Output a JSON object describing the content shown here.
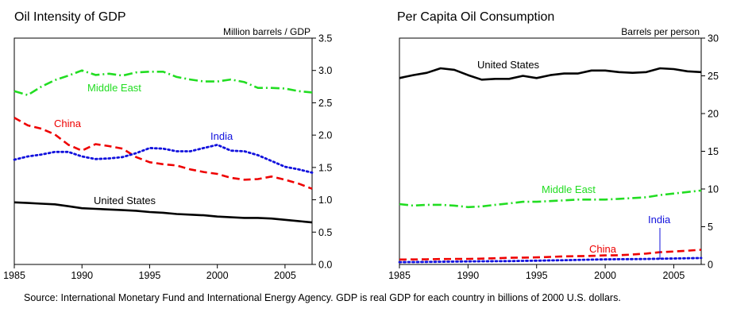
{
  "chart_data": [
    {
      "type": "line",
      "title": "Oil Intensity of GDP",
      "ylabel": "Million barrels / GDP",
      "ylim": [
        0,
        3.5
      ],
      "y_ticks": [
        "0.0",
        "0.5",
        "1.0",
        "1.5",
        "2.0",
        "2.5",
        "3.0",
        "3.5"
      ],
      "xlim": [
        1985,
        2007
      ],
      "x_ticks": [
        "1985",
        "1990",
        "1995",
        "2000",
        "2005"
      ],
      "x": [
        1985,
        1986,
        1987,
        1988,
        1989,
        1990,
        1991,
        1992,
        1993,
        1994,
        1995,
        1996,
        1997,
        1998,
        1999,
        2000,
        2001,
        2002,
        2003,
        2004,
        2005,
        2006,
        2007
      ],
      "series": [
        {
          "name": "Middle East",
          "color": "#22dd22",
          "style": "dashdot",
          "values": [
            2.68,
            2.62,
            2.75,
            2.85,
            2.92,
            3.0,
            2.93,
            2.95,
            2.92,
            2.97,
            2.98,
            2.98,
            2.9,
            2.86,
            2.83,
            2.83,
            2.86,
            2.82,
            2.73,
            2.73,
            2.72,
            2.68,
            2.66
          ]
        },
        {
          "name": "China",
          "color": "#ee0000",
          "style": "dashed",
          "values": [
            2.27,
            2.15,
            2.1,
            2.01,
            1.85,
            1.76,
            1.86,
            1.83,
            1.79,
            1.66,
            1.58,
            1.55,
            1.53,
            1.47,
            1.43,
            1.4,
            1.34,
            1.31,
            1.32,
            1.36,
            1.31,
            1.25,
            1.17
          ]
        },
        {
          "name": "India",
          "color": "#1111dd",
          "style": "dotted",
          "values": [
            1.62,
            1.67,
            1.7,
            1.74,
            1.74,
            1.67,
            1.63,
            1.64,
            1.66,
            1.72,
            1.8,
            1.79,
            1.75,
            1.75,
            1.8,
            1.85,
            1.76,
            1.75,
            1.69,
            1.6,
            1.51,
            1.47,
            1.42
          ]
        },
        {
          "name": "United States",
          "color": "#000000",
          "style": "solid",
          "values": [
            0.96,
            0.95,
            0.94,
            0.93,
            0.9,
            0.87,
            0.86,
            0.85,
            0.84,
            0.83,
            0.81,
            0.8,
            0.78,
            0.77,
            0.76,
            0.74,
            0.73,
            0.72,
            0.72,
            0.71,
            0.69,
            0.67,
            0.65
          ]
        }
      ]
    },
    {
      "type": "line",
      "title": "Per Capita Oil Consumption",
      "ylabel": "Barrels per person",
      "ylim": [
        0,
        30
      ],
      "y_ticks": [
        "0",
        "5",
        "10",
        "15",
        "20",
        "25",
        "30"
      ],
      "xlim": [
        1985,
        2007
      ],
      "x_ticks": [
        "1985",
        "1990",
        "1995",
        "2000",
        "2005"
      ],
      "x": [
        1985,
        1986,
        1987,
        1988,
        1989,
        1990,
        1991,
        1992,
        1993,
        1994,
        1995,
        1996,
        1997,
        1998,
        1999,
        2000,
        2001,
        2002,
        2003,
        2004,
        2005,
        2006,
        2007
      ],
      "series": [
        {
          "name": "United States",
          "color": "#000000",
          "style": "solid",
          "values": [
            24.7,
            25.1,
            25.4,
            26.0,
            25.8,
            25.1,
            24.5,
            24.6,
            24.6,
            25.0,
            24.7,
            25.1,
            25.3,
            25.3,
            25.7,
            25.7,
            25.5,
            25.4,
            25.5,
            26.0,
            25.9,
            25.6,
            25.5
          ]
        },
        {
          "name": "Middle East",
          "color": "#22dd22",
          "style": "dashdot",
          "values": [
            8.0,
            7.8,
            7.9,
            7.9,
            7.8,
            7.6,
            7.7,
            7.9,
            8.1,
            8.3,
            8.3,
            8.4,
            8.5,
            8.6,
            8.6,
            8.6,
            8.7,
            8.8,
            8.9,
            9.2,
            9.4,
            9.6,
            9.8
          ]
        },
        {
          "name": "China",
          "color": "#ee0000",
          "style": "dashed",
          "values": [
            0.65,
            0.66,
            0.68,
            0.72,
            0.73,
            0.74,
            0.77,
            0.82,
            0.88,
            0.91,
            0.94,
            1.0,
            1.07,
            1.1,
            1.14,
            1.2,
            1.22,
            1.32,
            1.44,
            1.62,
            1.72,
            1.82,
            1.95
          ]
        },
        {
          "name": "India",
          "color": "#1111dd",
          "style": "dotted",
          "values": [
            0.3,
            0.32,
            0.34,
            0.36,
            0.38,
            0.4,
            0.42,
            0.43,
            0.44,
            0.47,
            0.5,
            0.54,
            0.56,
            0.6,
            0.64,
            0.67,
            0.69,
            0.71,
            0.73,
            0.76,
            0.79,
            0.82,
            0.85
          ]
        }
      ]
    }
  ],
  "source_note": "Source: International Monetary Fund and International Energy Agency.  GDP is real GDP for each country in billions of 2000 U.S. dollars."
}
